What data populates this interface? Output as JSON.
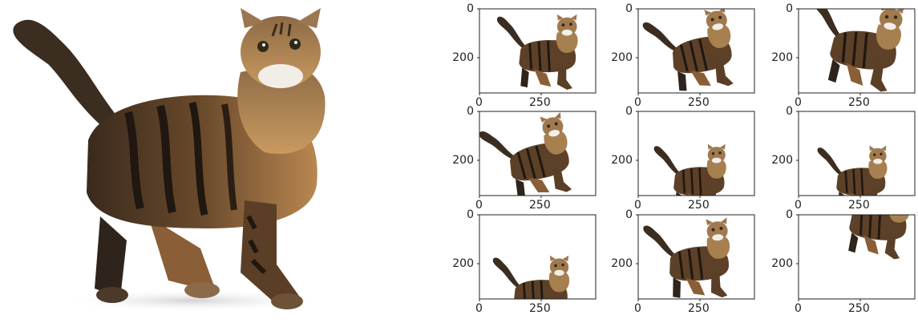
{
  "main_image": {
    "subject-icon": "tabby-cat-standing-looking-up"
  },
  "augmentation_grid": {
    "rows": 3,
    "cols": 3,
    "cells": [
      {
        "y_ticks": [
          "0",
          "200"
        ],
        "x_ticks": [
          "0",
          "250"
        ],
        "variant": "original-small"
      },
      {
        "y_ticks": [
          "0",
          "200"
        ],
        "x_ticks": [
          "0",
          "250"
        ],
        "variant": "rotated-left"
      },
      {
        "y_ticks": [
          "0",
          "200"
        ],
        "x_ticks": [
          "0",
          "250"
        ],
        "variant": "zoomed-in-shifted"
      },
      {
        "y_ticks": [
          "0",
          "200"
        ],
        "x_ticks": [
          "0",
          "250"
        ],
        "variant": "rotated-right"
      },
      {
        "y_ticks": [
          "0",
          "200"
        ],
        "x_ticks": [
          "0",
          "250"
        ],
        "variant": "shifted-down"
      },
      {
        "y_ticks": [
          "0",
          "200"
        ],
        "x_ticks": [
          "0",
          "250"
        ],
        "variant": "shifted-right"
      },
      {
        "y_ticks": [
          "0",
          "200"
        ],
        "x_ticks": [
          "0",
          "250"
        ],
        "variant": "shifted-bottom-right"
      },
      {
        "y_ticks": [
          "0",
          "200"
        ],
        "x_ticks": [
          "0",
          "250"
        ],
        "variant": "rotated-slight"
      },
      {
        "y_ticks": [
          "0",
          "200"
        ],
        "x_ticks": [
          "0",
          "250"
        ],
        "variant": "cropped-top"
      }
    ]
  }
}
